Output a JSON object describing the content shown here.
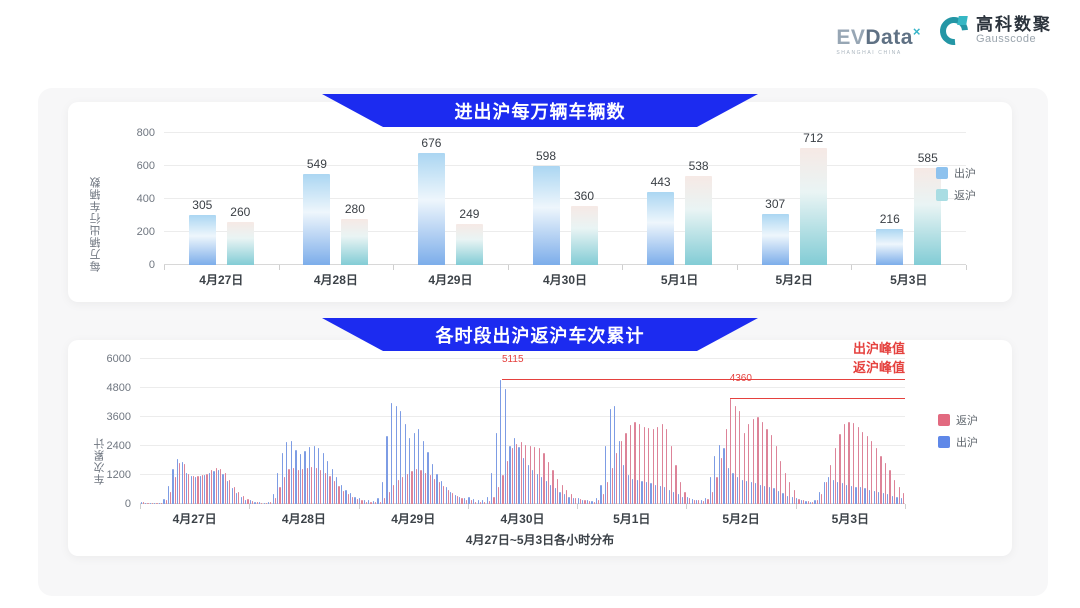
{
  "brand": {
    "evdata_ev": "EV",
    "evdata_data": "Data",
    "evdata_sup": "×",
    "evdata_tagline": "SHANGHAI CHINA",
    "gausscode_cn": "高科数聚",
    "gausscode_en": "Gausscode"
  },
  "chart_data": [
    {
      "type": "bar",
      "title": "进出沪每万辆车辆数",
      "ylabel": "每万辆出行车辆数",
      "xlabel": "",
      "categories": [
        "4月27日",
        "4月28日",
        "4月29日",
        "4月30日",
        "5月1日",
        "5月2日",
        "5月3日"
      ],
      "yticks": [
        0,
        200,
        400,
        600,
        800
      ],
      "ylim": [
        0,
        800
      ],
      "grid": true,
      "legend_position": "right",
      "series": [
        {
          "name": "出沪",
          "legend_color": "#8ec2ee",
          "values": [
            305,
            549,
            676,
            598,
            443,
            307,
            216
          ]
        },
        {
          "name": "返沪",
          "legend_color": "#a9dde3",
          "values": [
            260,
            280,
            249,
            360,
            538,
            712,
            585
          ]
        }
      ]
    },
    {
      "type": "bar",
      "title": "各时段出沪返沪车次累计",
      "ylabel": "车次累计",
      "xlabel": "4月27日~5月3日各小时分布",
      "categories": [
        "4月27日",
        "4月28日",
        "4月29日",
        "4月30日",
        "5月1日",
        "5月2日",
        "5月3日"
      ],
      "yticks": [
        0,
        1200,
        2400,
        3600,
        4800,
        6000
      ],
      "ylim": [
        0,
        6000
      ],
      "grid": true,
      "legend_position": "right",
      "hours_per_day": 24,
      "bar_draw_order": [
        "出沪",
        "返沪"
      ],
      "series": [
        {
          "name": "返沪",
          "color": "#dd8398",
          "legend_color": "#e26a80",
          "values_by_day": [
            [
              80,
              50,
              40,
              30,
              50,
              150,
              500,
              1100,
              1700,
              1650,
              1250,
              1150,
              1150,
              1200,
              1250,
              1400,
              1500,
              1450,
              1300,
              1000,
              700,
              500,
              350,
              200
            ],
            [
              120,
              80,
              60,
              50,
              80,
              250,
              700,
              1100,
              1450,
              1500,
              1400,
              1450,
              1500,
              1550,
              1500,
              1400,
              1300,
              1150,
              950,
              750,
              550,
              400,
              300,
              200
            ],
            [
              150,
              100,
              80,
              70,
              100,
              250,
              500,
              800,
              1000,
              1100,
              1250,
              1350,
              1450,
              1400,
              1300,
              1200,
              1050,
              900,
              750,
              600,
              450,
              350,
              250,
              180
            ],
            [
              150,
              100,
              80,
              70,
              120,
              300,
              700,
              1200,
              1800,
              2300,
              2500,
              2550,
              2450,
              2400,
              2350,
              2300,
              2100,
              1750,
              1400,
              1050,
              800,
              600,
              400,
              250
            ],
            [
              200,
              150,
              120,
              100,
              150,
              400,
              900,
              1500,
              2100,
              2600,
              2950,
              3250,
              3400,
              3300,
              3200,
              3150,
              3100,
              3200,
              3300,
              3100,
              2400,
              1600,
              900,
              500
            ],
            [
              250,
              180,
              150,
              130,
              200,
              500,
              1100,
              1900,
              3100,
              4360,
              4050,
              3850,
              2950,
              3300,
              3500,
              3600,
              3400,
              3100,
              2850,
              2400,
              1800,
              1300,
              900,
              600
            ],
            [
              200,
              150,
              120,
              100,
              150,
              400,
              900,
              1600,
              2300,
              2900,
              3300,
              3400,
              3350,
              3200,
              3000,
              2800,
              2600,
              2300,
              2000,
              1700,
              1400,
              1000,
              700,
              450
            ]
          ]
        },
        {
          "name": "出沪",
          "color": "#7d9ce4",
          "legend_color": "#5f88e8",
          "values_by_day": [
            [
              100,
              60,
              50,
              40,
              60,
              200,
              750,
              1450,
              1870,
              1750,
              1300,
              1150,
              1100,
              1150,
              1200,
              1300,
              1350,
              1400,
              1250,
              950,
              650,
              450,
              300,
              180
            ],
            [
              150,
              90,
              70,
              60,
              100,
              400,
              1300,
              2100,
              2550,
              2600,
              2250,
              2050,
              2200,
              2350,
              2400,
              2300,
              2100,
              1800,
              1450,
              1100,
              800,
              600,
              450,
              300
            ],
            [
              250,
              180,
              150,
              130,
              250,
              900,
              2800,
              4200,
              4050,
              3850,
              3300,
              2750,
              2950,
              3100,
              2600,
              2150,
              1650,
              1250,
              950,
              700,
              500,
              380,
              300,
              250
            ],
            [
              300,
              200,
              150,
              150,
              300,
              1300,
              2950,
              5115,
              4750,
              2400,
              2750,
              2350,
              1900,
              1600,
              1400,
              1250,
              1100,
              950,
              800,
              650,
              500,
              400,
              300,
              250
            ],
            [
              250,
              180,
              150,
              130,
              250,
              800,
              2400,
              3950,
              4050,
              2600,
              1600,
              1200,
              1050,
              1000,
              950,
              900,
              850,
              800,
              750,
              700,
              600,
              500,
              400,
              300
            ],
            [
              300,
              200,
              150,
              150,
              250,
              1100,
              2000,
              2450,
              2300,
              1500,
              1300,
              1100,
              1000,
              950,
              900,
              850,
              800,
              750,
              700,
              650,
              550,
              450,
              350,
              300
            ],
            [
              250,
              150,
              120,
              100,
              150,
              500,
              900,
              1100,
              1000,
              900,
              850,
              800,
              750,
              700,
              700,
              650,
              600,
              550,
              500,
              450,
              400,
              350,
              300,
              250
            ]
          ]
        }
      ],
      "annotations": [
        {
          "value_label": "5115",
          "value": 5115,
          "text": "出沪峰值",
          "color": "#e5413e",
          "start_day": 3,
          "start_hour": 7
        },
        {
          "value_label": "4360",
          "value": 4360,
          "text": "返沪峰值",
          "color": "#e5413e",
          "start_day": 5,
          "start_hour": 9
        }
      ]
    }
  ]
}
